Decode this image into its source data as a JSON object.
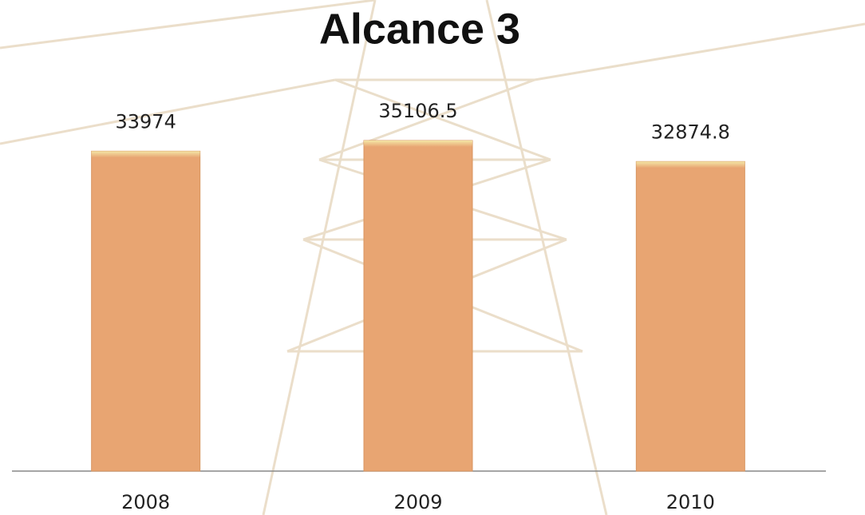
{
  "chart_data": {
    "type": "bar",
    "title": "Alcance 3",
    "categories": [
      "2008",
      "2009",
      "2010"
    ],
    "values": [
      33974,
      35106.5,
      32874.8
    ],
    "color": "#e8a572"
  }
}
